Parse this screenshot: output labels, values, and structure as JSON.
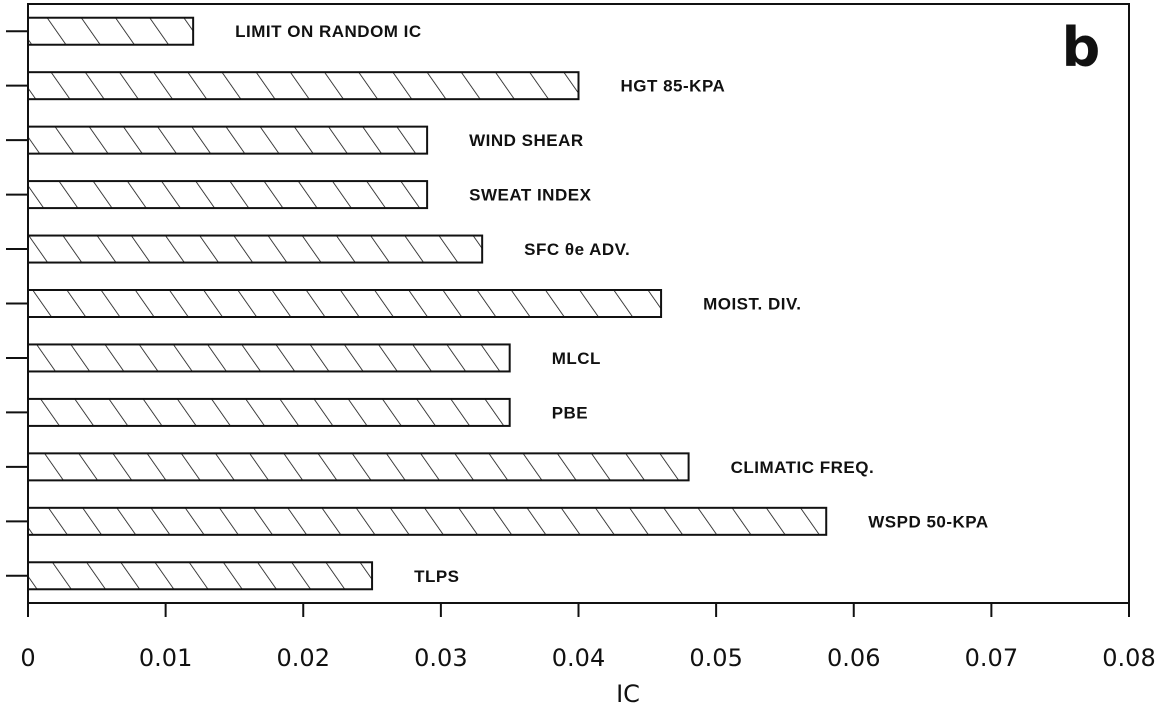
{
  "panel_letter": "b",
  "chart_data": {
    "type": "bar",
    "orientation": "horizontal",
    "title": "",
    "xlabel": "IC",
    "ylabel": "",
    "xlim": [
      0,
      0.08
    ],
    "xticks": [
      "0",
      "0.01",
      "0.02",
      "0.03",
      "0.04",
      "0.05",
      "0.06",
      "0.07",
      "0.08"
    ],
    "grid": false,
    "bar_fill": "diagonal hatch",
    "categories": [
      "LIMIT ON RANDOM IC",
      "HGT 85-KPA",
      "WIND SHEAR",
      "SWEAT INDEX",
      "SFC θe ADV.",
      "MOIST. DIV.",
      "MLCL",
      "PBE",
      "CLIMATIC FREQ.",
      "WSPD 50-KPA",
      "TLPS"
    ],
    "values": [
      0.012,
      0.04,
      0.029,
      0.029,
      0.033,
      0.046,
      0.035,
      0.035,
      0.048,
      0.058,
      0.025
    ]
  }
}
